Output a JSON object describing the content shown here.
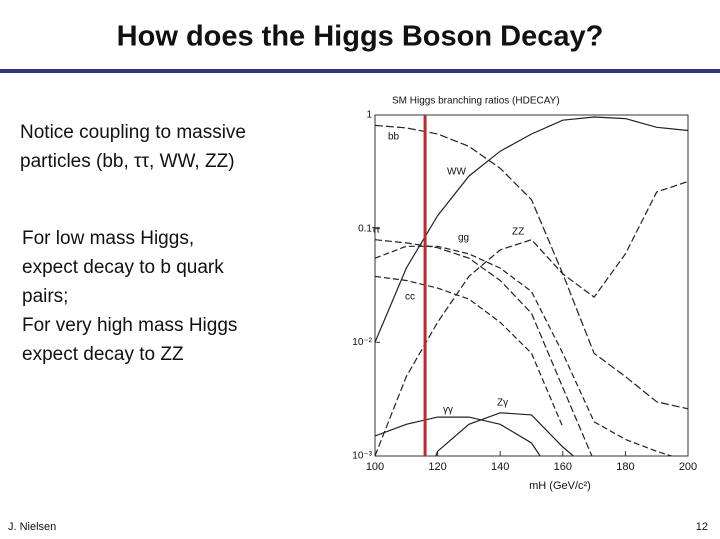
{
  "slide": {
    "title": "How does the Higgs Boson Decay?",
    "block1": [
      "Notice coupling to massive",
      "particles (bb, ττ, WW, ZZ)"
    ],
    "block2": [
      "For low mass Higgs,",
      "expect decay to b quark",
      "pairs;",
      "For very high mass Higgs",
      "expect decay to ZZ"
    ],
    "footer_left": "J. Nielsen",
    "footer_right": "12"
  },
  "chart_data": {
    "type": "line",
    "title": "SM Higgs branching ratios (HDECAY)",
    "xlabel": "mH (GeV/c²)",
    "x": [
      100,
      110,
      120,
      130,
      140,
      150,
      160,
      170,
      180,
      190,
      200
    ],
    "log_y": true,
    "xlim": [
      100,
      200
    ],
    "ylim": [
      0.001,
      1
    ],
    "xticks": [
      100,
      120,
      140,
      160,
      180,
      200
    ],
    "yticks": [
      1,
      0.1,
      {
        "value": 0.01,
        "label": "10⁻²"
      },
      {
        "value": 0.001,
        "label": "10⁻³"
      }
    ],
    "series": [
      {
        "name": "bb",
        "color": "#222222",
        "values": [
          0.81,
          0.77,
          0.68,
          0.53,
          0.34,
          0.18,
          0.04,
          0.008,
          0.005,
          0.003,
          0.0026
        ]
      },
      {
        "name": "WW",
        "color": "#222222",
        "values": [
          0.01,
          0.045,
          0.13,
          0.29,
          0.48,
          0.68,
          0.9,
          0.96,
          0.93,
          0.78,
          0.73
        ]
      },
      {
        "name": "ττ",
        "color": "#222222",
        "values": [
          0.08,
          0.075,
          0.068,
          0.055,
          0.035,
          0.018,
          0.004,
          0.0009,
          null,
          null,
          null
        ]
      },
      {
        "name": "gg",
        "color": "#222222",
        "values": [
          0.055,
          0.07,
          0.07,
          0.06,
          0.045,
          0.028,
          0.008,
          0.002,
          0.0014,
          0.0011,
          0.0009
        ]
      },
      {
        "name": "ZZ",
        "color": "#222222",
        "values": [
          0.001,
          0.005,
          0.015,
          0.038,
          0.065,
          0.08,
          0.04,
          0.025,
          0.06,
          0.21,
          0.26
        ]
      },
      {
        "name": "cc",
        "color": "#222222",
        "values": [
          0.038,
          0.035,
          0.03,
          0.024,
          0.015,
          0.008,
          0.0018,
          null,
          null,
          null,
          null
        ]
      },
      {
        "name": "γγ",
        "color": "#222222",
        "values": [
          0.0015,
          0.0019,
          0.0022,
          0.0022,
          0.0019,
          0.0013,
          0.0005,
          null,
          null,
          null,
          null
        ]
      },
      {
        "name": "Zγ",
        "color": "#222222",
        "values": [
          null,
          0.0002,
          0.0011,
          0.0019,
          0.0024,
          0.0023,
          0.0012,
          0.0007,
          null,
          null,
          null
        ]
      }
    ],
    "vline": {
      "x": 116,
      "color": "#c0282d"
    }
  }
}
